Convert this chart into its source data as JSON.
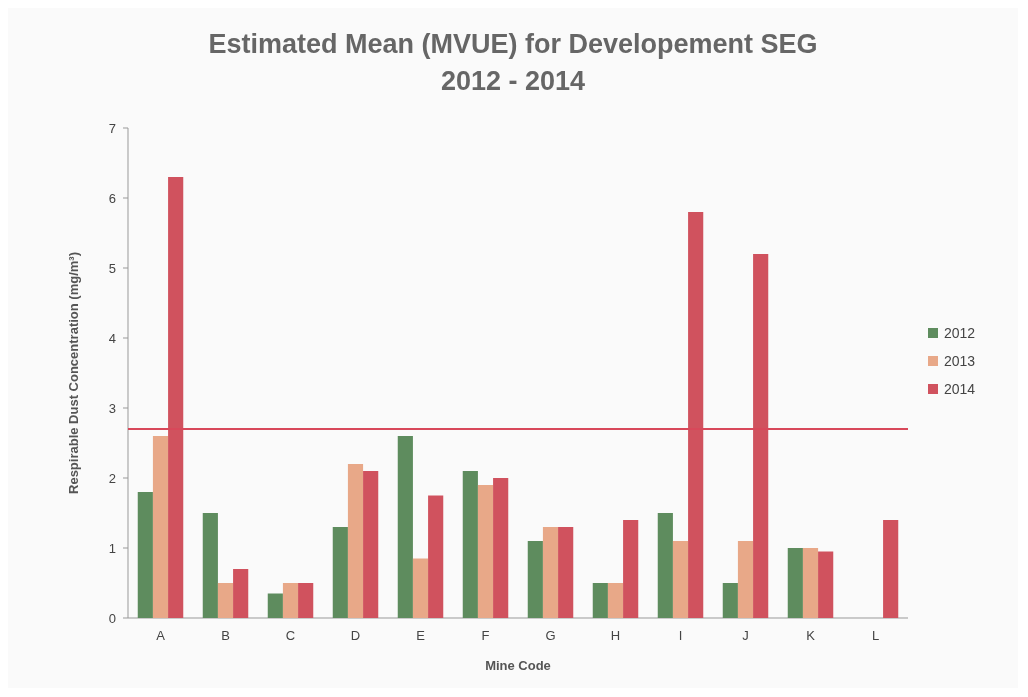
{
  "chart_data": {
    "type": "bar",
    "title": "Estimated Mean (MVUE) for Developement SEG",
    "subtitle": "2012 - 2014",
    "xlabel": "Mine Code",
    "ylabel": "Respirable Dust Concentration (mg/m³)",
    "categories": [
      "A",
      "B",
      "C",
      "D",
      "E",
      "F",
      "G",
      "H",
      "I",
      "J",
      "K",
      "L"
    ],
    "series": [
      {
        "name": "2012",
        "color": "#5e8c5e",
        "values": [
          1.8,
          1.5,
          0.35,
          1.3,
          2.6,
          2.1,
          1.1,
          0.5,
          1.5,
          0.5,
          1.0,
          null
        ]
      },
      {
        "name": "2013",
        "color": "#e8a888",
        "values": [
          2.6,
          0.5,
          0.5,
          2.2,
          0.85,
          1.9,
          1.3,
          0.5,
          1.1,
          1.1,
          1.0,
          null
        ]
      },
      {
        "name": "2014",
        "color": "#d0525e",
        "values": [
          6.3,
          0.7,
          0.5,
          2.1,
          1.75,
          2.0,
          1.3,
          1.4,
          5.8,
          5.2,
          0.95,
          1.4
        ]
      }
    ],
    "ylim": [
      0,
      7
    ],
    "yticks": [
      0,
      1,
      2,
      3,
      4,
      5,
      6,
      7
    ],
    "grid": false,
    "legend": "right",
    "ref_lines": [
      {
        "axis": "y",
        "value": 2.7,
        "color": "#d8485a"
      }
    ]
  }
}
